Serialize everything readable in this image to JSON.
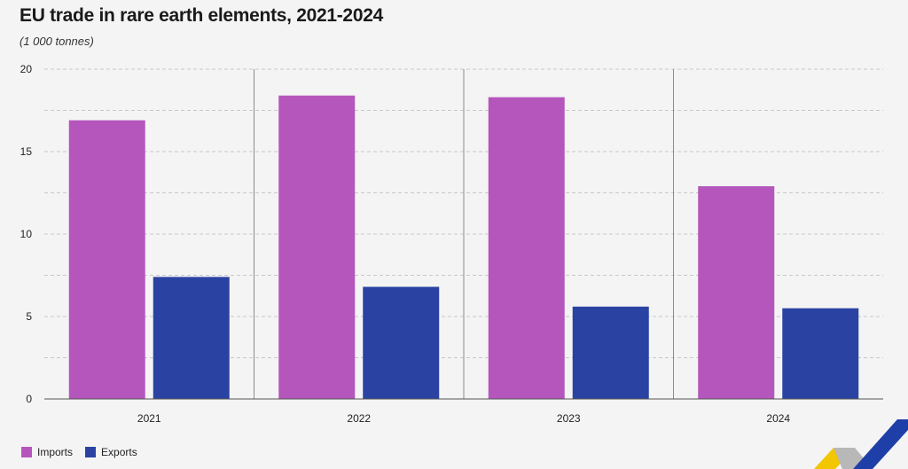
{
  "title": "EU trade in rare earth elements, 2021-2024",
  "subtitle": "(1 000 tonnes)",
  "colors": {
    "imports": "#b556bd",
    "exports": "#2a43a3",
    "grid": "#c8c8c8",
    "divider": "#8c8c8c",
    "logo_yellow": "#f2c600",
    "logo_blue": "#1f3fa8",
    "logo_grey": "#b8b8b8"
  },
  "legend": {
    "imports_label": "Imports",
    "exports_label": "Exports"
  },
  "chart_data": {
    "type": "bar",
    "title": "EU trade in rare earth elements, 2021-2024",
    "subtitle": "(1 000 tonnes)",
    "categories": [
      "2021",
      "2022",
      "2023",
      "2024"
    ],
    "series": [
      {
        "name": "Imports",
        "values": [
          16.9,
          18.4,
          18.3,
          12.9
        ]
      },
      {
        "name": "Exports",
        "values": [
          7.4,
          6.8,
          5.6,
          5.5
        ]
      }
    ],
    "ylim": [
      0,
      20
    ],
    "yticks": [
      0,
      5,
      10,
      15,
      20
    ],
    "grid": true,
    "legend_position": "bottom-left",
    "xlabel": "",
    "ylabel": ""
  }
}
